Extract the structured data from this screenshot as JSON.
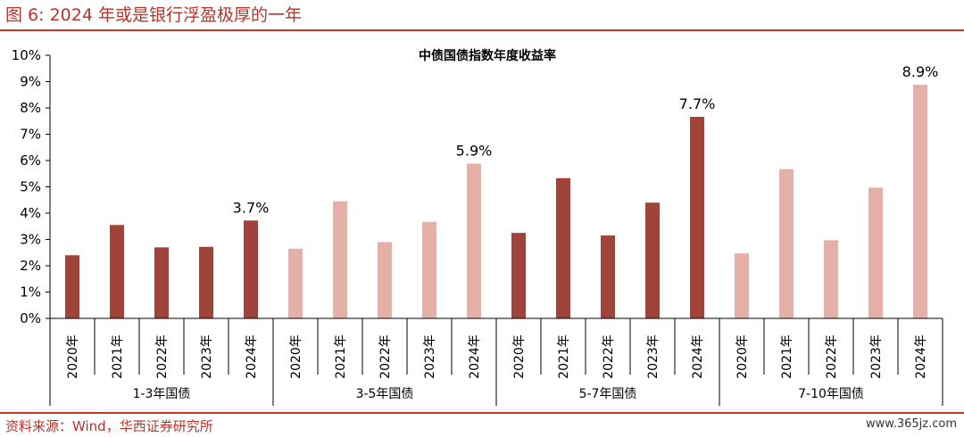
{
  "header": {
    "figure_title": "图 6:   2024 年或是银行浮盈极厚的一年"
  },
  "footer": {
    "source": "资料来源：Wind，华西证券研究所",
    "watermark": "www.365jz.com"
  },
  "colors": {
    "dark": "#a0443a",
    "light": "#e4b0a8",
    "accent": "#c0392b"
  },
  "chart_data": {
    "type": "bar",
    "title": "中债国债指数年度收益率",
    "xlabel": "",
    "ylabel": "",
    "ylim": [
      0,
      10
    ],
    "y_ticks": [
      "0%",
      "1%",
      "2%",
      "3%",
      "4%",
      "5%",
      "6%",
      "7%",
      "8%",
      "9%",
      "10%"
    ],
    "grid": false,
    "groups": [
      {
        "label": "1-3年国债",
        "style": "dark",
        "bars": [
          {
            "year": "2020年",
            "value": 2.4
          },
          {
            "year": "2021年",
            "value": 3.55
          },
          {
            "year": "2022年",
            "value": 2.7
          },
          {
            "year": "2023年",
            "value": 2.72
          },
          {
            "year": "2024年",
            "value": 3.72,
            "label": "3.7%"
          }
        ]
      },
      {
        "label": "3-5年国债",
        "style": "light",
        "bars": [
          {
            "year": "2020年",
            "value": 2.65
          },
          {
            "year": "2021年",
            "value": 4.45
          },
          {
            "year": "2022年",
            "value": 2.9
          },
          {
            "year": "2023年",
            "value": 3.67
          },
          {
            "year": "2024年",
            "value": 5.88,
            "label": "5.9%"
          }
        ]
      },
      {
        "label": "5-7年国债",
        "style": "dark",
        "bars": [
          {
            "year": "2020年",
            "value": 3.25
          },
          {
            "year": "2021年",
            "value": 5.33
          },
          {
            "year": "2022年",
            "value": 3.15
          },
          {
            "year": "2023年",
            "value": 4.4
          },
          {
            "year": "2024年",
            "value": 7.66,
            "label": "7.7%"
          }
        ]
      },
      {
        "label": "7-10年国债",
        "style": "light",
        "bars": [
          {
            "year": "2020年",
            "value": 2.47
          },
          {
            "year": "2021年",
            "value": 5.67
          },
          {
            "year": "2022年",
            "value": 2.97
          },
          {
            "year": "2023年",
            "value": 4.97
          },
          {
            "year": "2024年",
            "value": 8.88,
            "label": "8.9%"
          }
        ]
      }
    ]
  }
}
